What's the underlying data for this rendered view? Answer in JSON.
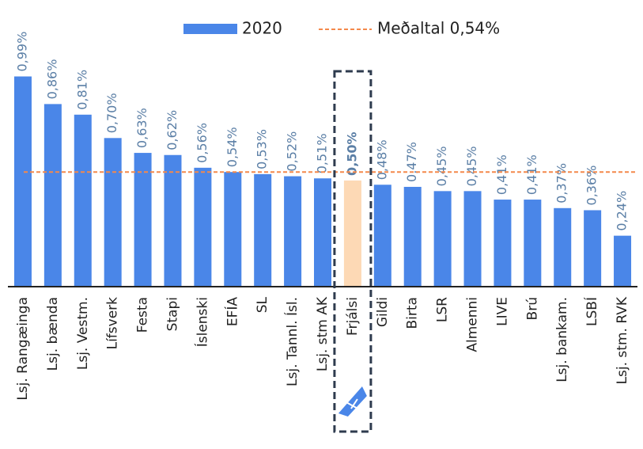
{
  "chart_data": {
    "type": "bar",
    "categories": [
      "Lsj. Rangæinga",
      "Lsj. bænda",
      "Lsj. Vestm.",
      "Lífsverk",
      "Festa",
      "Stapi",
      "Íslenski",
      "EFÍA",
      "SL",
      "Lsj. Tannl. Ísl.",
      "Lsj. stm AK",
      "Frjálsi",
      "Gildi",
      "Birta",
      "LSR",
      "Almenni",
      "LIVE",
      "Brú",
      "Lsj. bankam.",
      "LSBÍ",
      "Lsj. stm. RVK"
    ],
    "series": [
      {
        "name": "2020",
        "color": "#4a86e8",
        "values": [
          0.99,
          0.86,
          0.81,
          0.7,
          0.63,
          0.62,
          0.56,
          0.54,
          0.53,
          0.52,
          0.51,
          0.5,
          0.48,
          0.47,
          0.45,
          0.45,
          0.41,
          0.41,
          0.37,
          0.36,
          0.24
        ],
        "value_labels": [
          "0,99%",
          "0,86%",
          "0,81%",
          "0,70%",
          "0,63%",
          "0,62%",
          "0,56%",
          "0,54%",
          "0,53%",
          "0,52%",
          "0,51%",
          "0,50%",
          "0,48%",
          "0,47%",
          "0,45%",
          "0,45%",
          "0,41%",
          "0,41%",
          "0,37%",
          "0,36%",
          "0,24%"
        ]
      }
    ],
    "highlight": 11,
    "highlight_color": "#fdd9b5",
    "reference_line": {
      "name": "Meðaltal 0,54%",
      "value": 0.54,
      "color": "#f4894b"
    },
    "ylim": [
      0,
      1.35
    ]
  }
}
